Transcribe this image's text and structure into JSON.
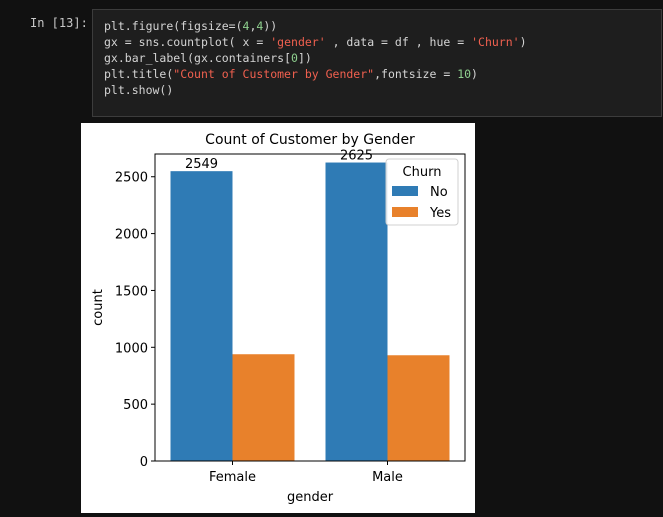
{
  "cell": {
    "prompt": "In [13]:",
    "code_lines": [
      [
        [
          "plain",
          "plt"
        ],
        [
          "op",
          "."
        ],
        [
          "plain",
          "figure"
        ],
        [
          "op",
          "("
        ],
        [
          "plain",
          "figsize"
        ],
        [
          "op",
          "="
        ],
        [
          "op",
          "("
        ],
        [
          "num",
          "4"
        ],
        [
          "op",
          ","
        ],
        [
          "num",
          "4"
        ],
        [
          "op",
          "))"
        ]
      ],
      [
        [
          "plain",
          "gx "
        ],
        [
          "op",
          "= "
        ],
        [
          "plain",
          "sns"
        ],
        [
          "op",
          "."
        ],
        [
          "plain",
          "countplot"
        ],
        [
          "op",
          "( "
        ],
        [
          "plain",
          "x "
        ],
        [
          "op",
          "= "
        ],
        [
          "str",
          "'gender'"
        ],
        [
          "op",
          " , "
        ],
        [
          "plain",
          "data "
        ],
        [
          "op",
          "= "
        ],
        [
          "plain",
          "df "
        ],
        [
          "op",
          ", "
        ],
        [
          "plain",
          "hue "
        ],
        [
          "op",
          "= "
        ],
        [
          "str",
          "'Churn'"
        ],
        [
          "op",
          ")"
        ]
      ],
      [
        [
          "plain",
          "gx"
        ],
        [
          "op",
          "."
        ],
        [
          "plain",
          "bar_label"
        ],
        [
          "op",
          "("
        ],
        [
          "plain",
          "gx"
        ],
        [
          "op",
          "."
        ],
        [
          "plain",
          "containers"
        ],
        [
          "op",
          "["
        ],
        [
          "num",
          "0"
        ],
        [
          "op",
          "])"
        ]
      ],
      [
        [
          "plain",
          "plt"
        ],
        [
          "op",
          "."
        ],
        [
          "plain",
          "title"
        ],
        [
          "op",
          "("
        ],
        [
          "str",
          "\"Count of Customer by Gender\""
        ],
        [
          "op",
          ","
        ],
        [
          "plain",
          "fontsize "
        ],
        [
          "op",
          "= "
        ],
        [
          "num",
          "10"
        ],
        [
          "op",
          ")"
        ]
      ],
      [
        [
          "plain",
          "plt"
        ],
        [
          "op",
          "."
        ],
        [
          "plain",
          "show"
        ],
        [
          "op",
          "()"
        ]
      ]
    ]
  },
  "colors": {
    "no": "#2f7bb5",
    "yes": "#e8812b"
  },
  "chart_data": {
    "type": "bar",
    "title": "Count of Customer by Gender",
    "xlabel": "gender",
    "ylabel": "count",
    "categories": [
      "Female",
      "Male"
    ],
    "series": [
      {
        "name": "No",
        "values": [
          2549,
          2625
        ]
      },
      {
        "name": "Yes",
        "values": [
          939,
          930
        ]
      }
    ],
    "data_labels": [
      "2549",
      "2625"
    ],
    "ylim": [
      0,
      2700
    ],
    "yticks": [
      0,
      500,
      1000,
      1500,
      2000,
      2500
    ],
    "legend": {
      "title": "Churn",
      "placement": "top-right"
    },
    "grid": false
  }
}
